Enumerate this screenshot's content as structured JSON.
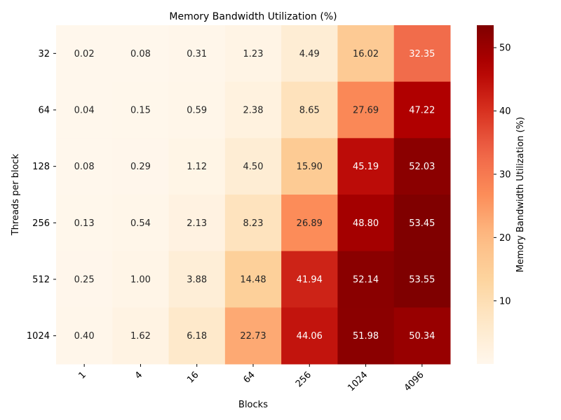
{
  "chart_data": {
    "type": "heatmap",
    "title": "Memory Bandwidth Utilization (%)",
    "xlabel": "Blocks",
    "ylabel": "Threads per block",
    "x_categories": [
      "1",
      "4",
      "16",
      "64",
      "256",
      "1024",
      "4096"
    ],
    "y_categories": [
      "32",
      "64",
      "128",
      "256",
      "512",
      "1024"
    ],
    "values": [
      [
        0.02,
        0.08,
        0.31,
        1.23,
        4.49,
        16.02,
        32.35
      ],
      [
        0.04,
        0.15,
        0.59,
        2.38,
        8.65,
        27.69,
        47.22
      ],
      [
        0.08,
        0.29,
        1.12,
        4.5,
        15.9,
        45.19,
        52.03
      ],
      [
        0.13,
        0.54,
        2.13,
        8.23,
        26.89,
        48.8,
        53.45
      ],
      [
        0.25,
        1.0,
        3.88,
        14.48,
        41.94,
        52.14,
        53.55
      ],
      [
        0.4,
        1.62,
        6.18,
        22.73,
        44.06,
        51.98,
        50.34
      ]
    ],
    "colormap": "OrRd",
    "vmin": 0.02,
    "vmax": 53.55,
    "colorbar": {
      "label": "Memory Bandwidth Utilization (%)",
      "ticks": [
        "10",
        "20",
        "30",
        "40",
        "50"
      ]
    }
  }
}
